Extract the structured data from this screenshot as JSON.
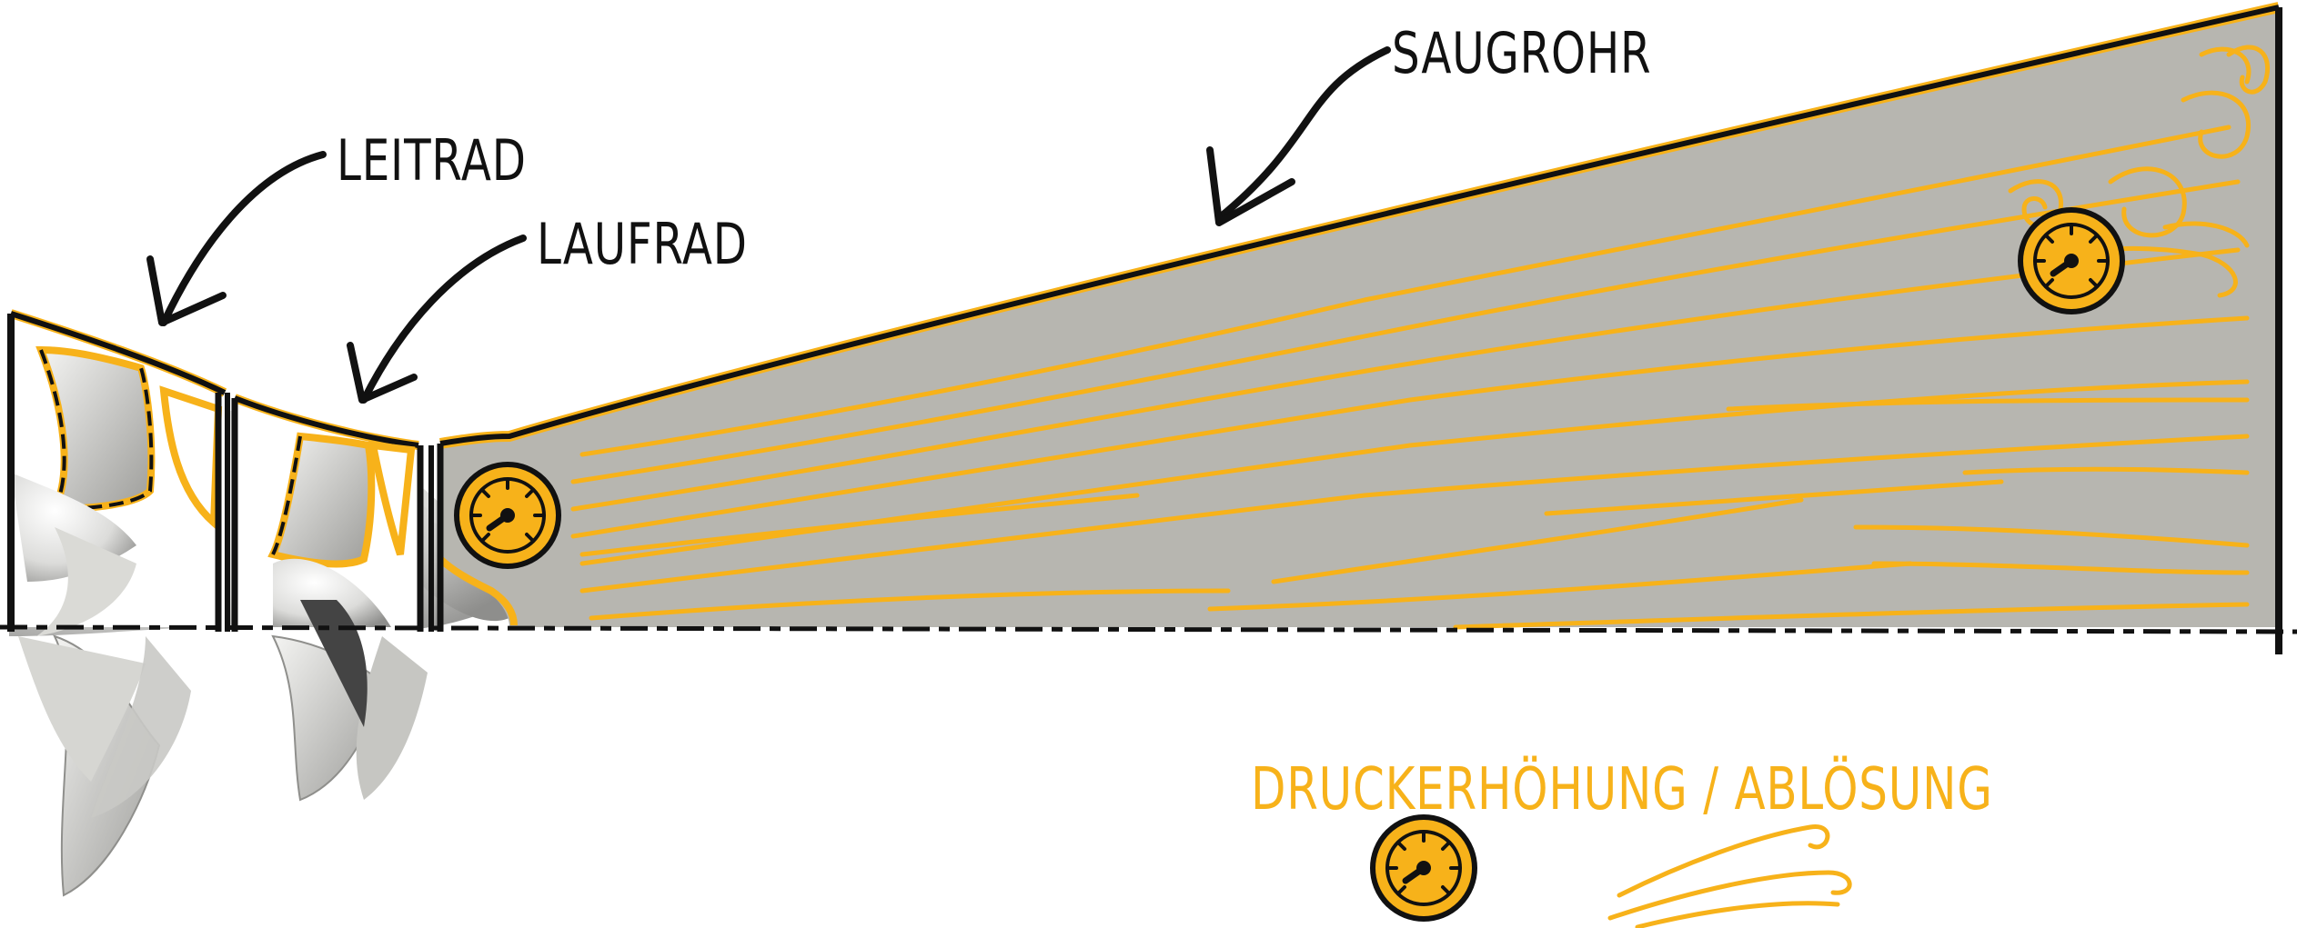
{
  "labels": {
    "leitrad": "LEITRAD",
    "laufrad": "LAUFRAD",
    "saugrohr": "SAUGROHR"
  },
  "legend": {
    "text": "DRUCKERHÖHUNG / ABLÖSUNG",
    "icons": [
      "pressure-gauge-icon",
      "swirl-flow-icon"
    ]
  },
  "colors": {
    "accent": "#F7B21A",
    "tube_fill": "#B7B6B0",
    "outline": "#111111",
    "blade": "#D9D9D6"
  }
}
